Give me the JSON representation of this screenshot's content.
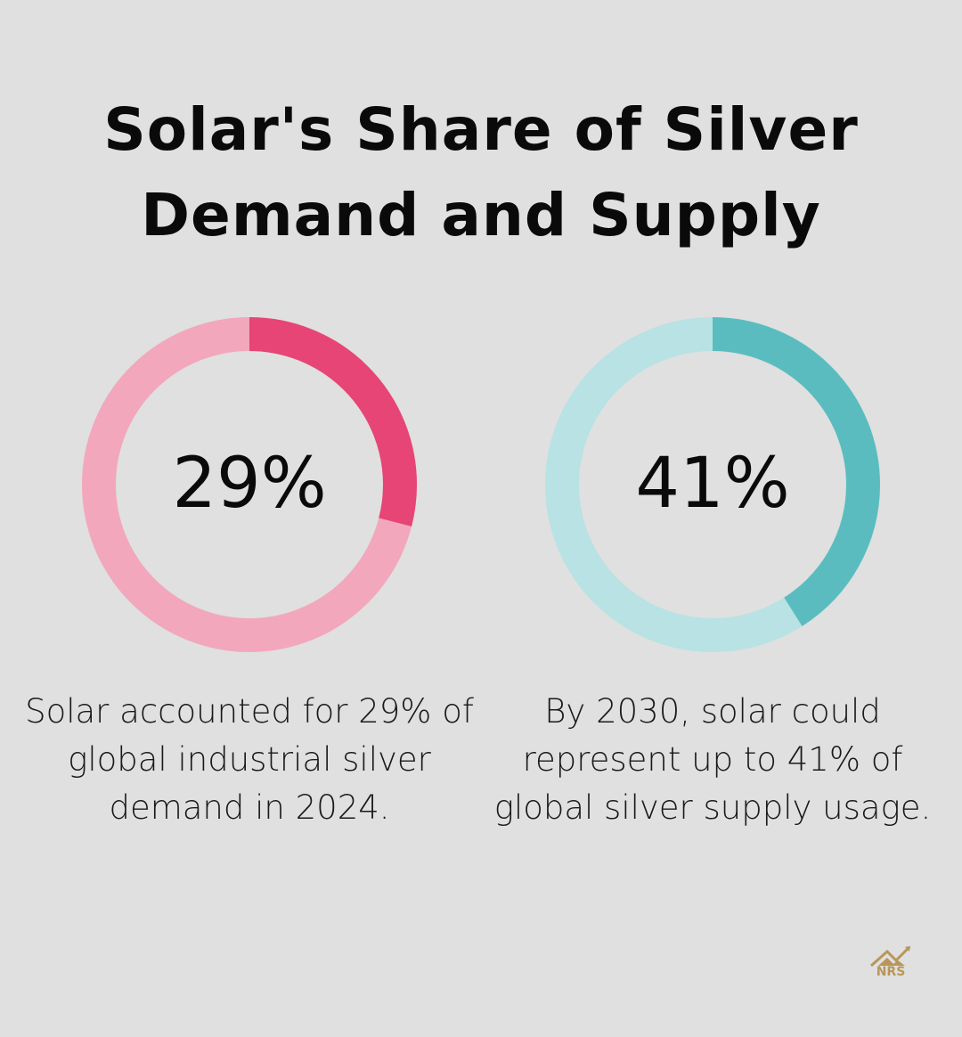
{
  "title_line1": "Solar's Share of Silver",
  "title_line2": "Demand and Supply",
  "chart_data": [
    {
      "type": "pie",
      "variant": "donut",
      "value": 29,
      "label": "29%",
      "description": "Solar accounted for 29% of global industrial silver demand in 2024.",
      "colors": {
        "fill": "#e64575",
        "track": "#f2a7bd"
      }
    },
    {
      "type": "pie",
      "variant": "donut",
      "value": 41,
      "label": "41%",
      "description": "By 2030, solar could represent up to 41% of global silver supply usage.",
      "colors": {
        "fill": "#5bbcc0",
        "track": "#b8e2e4"
      }
    }
  ],
  "logo": {
    "text": "NRS",
    "color": "#b8965a"
  }
}
